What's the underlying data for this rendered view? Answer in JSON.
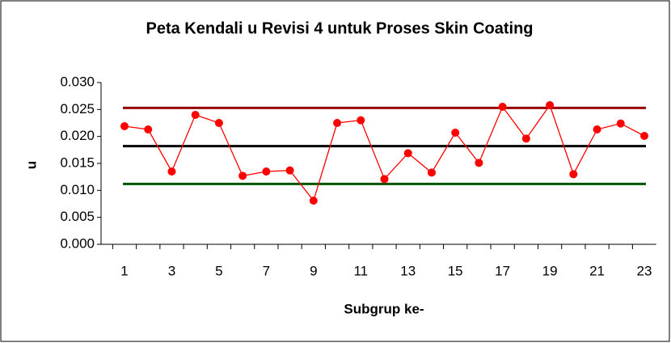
{
  "chart_data": {
    "type": "line",
    "title": "Peta Kendali u Revisi 4 untuk Proses Skin Coating",
    "x_label": "Subgrup ke-",
    "y_label": "u",
    "categories": [
      "1",
      null,
      "3",
      null,
      "5",
      null,
      "7",
      null,
      "9",
      null,
      "11",
      null,
      "13",
      null,
      "15",
      null,
      "17",
      null,
      "19",
      null,
      "21",
      null,
      "23"
    ],
    "series": [
      {
        "color": "#ff0000",
        "values": [
          0.0219,
          0.0213,
          0.0135,
          0.024,
          0.0225,
          0.0127,
          0.0135,
          0.0137,
          0.0081,
          0.0225,
          0.023,
          0.0121,
          0.0169,
          0.0133,
          0.0207,
          0.0151,
          0.0255,
          0.0196,
          0.0258,
          0.013,
          0.0213,
          0.0224,
          0.0201
        ]
      }
    ],
    "control_lines": [
      {
        "value": 0.0253,
        "color": "#990000"
      },
      {
        "value": 0.0182,
        "color": "#000000"
      },
      {
        "value": 0.0112,
        "color": "#005500"
      }
    ],
    "ylim": [
      0,
      0.03
    ],
    "yticks": [
      {
        "value": 0,
        "label": "0.000"
      },
      {
        "value": 0.005,
        "label": "0.005"
      },
      {
        "value": 0.01,
        "label": "0.010"
      },
      {
        "value": 0.015,
        "label": "0.015"
      },
      {
        "value": 0.02,
        "label": "0.020"
      },
      {
        "value": 0.025,
        "label": "0.025"
      },
      {
        "value": 0.03,
        "label": "0.030"
      }
    ]
  }
}
